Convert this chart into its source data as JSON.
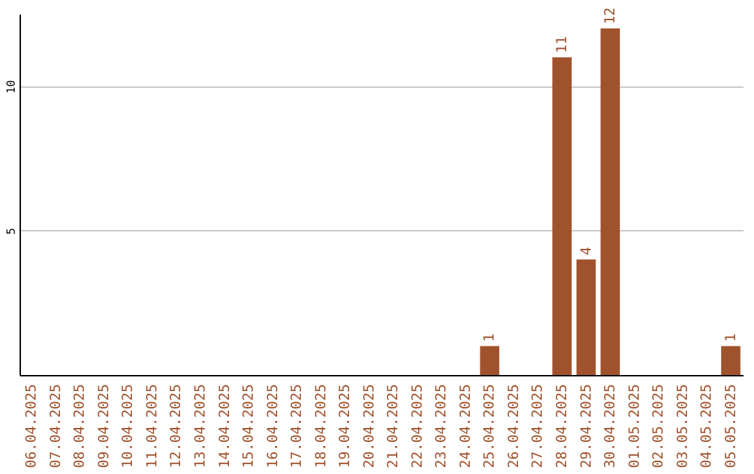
{
  "chart_data": {
    "type": "bar",
    "categories": [
      "06.04.2025",
      "07.04.2025",
      "08.04.2025",
      "09.04.2025",
      "10.04.2025",
      "11.04.2025",
      "12.04.2025",
      "13.04.2025",
      "14.04.2025",
      "15.04.2025",
      "16.04.2025",
      "17.04.2025",
      "18.04.2025",
      "19.04.2025",
      "20.04.2025",
      "21.04.2025",
      "22.04.2025",
      "23.04.2025",
      "24.04.2025",
      "25.04.2025",
      "26.04.2025",
      "27.04.2025",
      "28.04.2025",
      "29.04.2025",
      "30.04.2025",
      "01.05.2025",
      "02.05.2025",
      "03.05.2025",
      "04.05.2025",
      "05.05.2025"
    ],
    "values": [
      0,
      0,
      0,
      0,
      0,
      0,
      0,
      0,
      0,
      0,
      0,
      0,
      0,
      0,
      0,
      0,
      0,
      0,
      0,
      1,
      0,
      0,
      11,
      4,
      12,
      0,
      0,
      0,
      0,
      1
    ],
    "value_labels": [
      null,
      null,
      null,
      null,
      null,
      null,
      null,
      null,
      null,
      null,
      null,
      null,
      null,
      null,
      null,
      null,
      null,
      null,
      null,
      "1",
      null,
      null,
      "11",
      "4",
      "12",
      null,
      null,
      null,
      null,
      "1"
    ],
    "color": "#a0522d",
    "ylim": [
      0,
      12.5
    ],
    "yticks": [
      5,
      10
    ],
    "grid": "y"
  }
}
